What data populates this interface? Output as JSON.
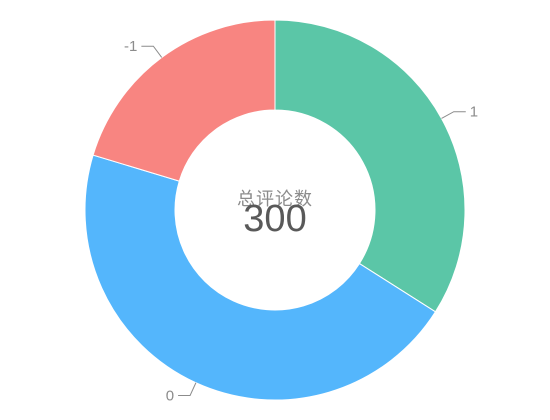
{
  "chart_data": {
    "type": "pie",
    "donut": true,
    "slices": [
      {
        "label": "1",
        "value": 102,
        "color": "#5BC6A7"
      },
      {
        "label": "0",
        "value": 137,
        "color": "#54B6FC"
      },
      {
        "label": "-1",
        "value": 61,
        "color": "#F88581"
      }
    ],
    "center_title": "总评论数",
    "center_value": "300"
  }
}
